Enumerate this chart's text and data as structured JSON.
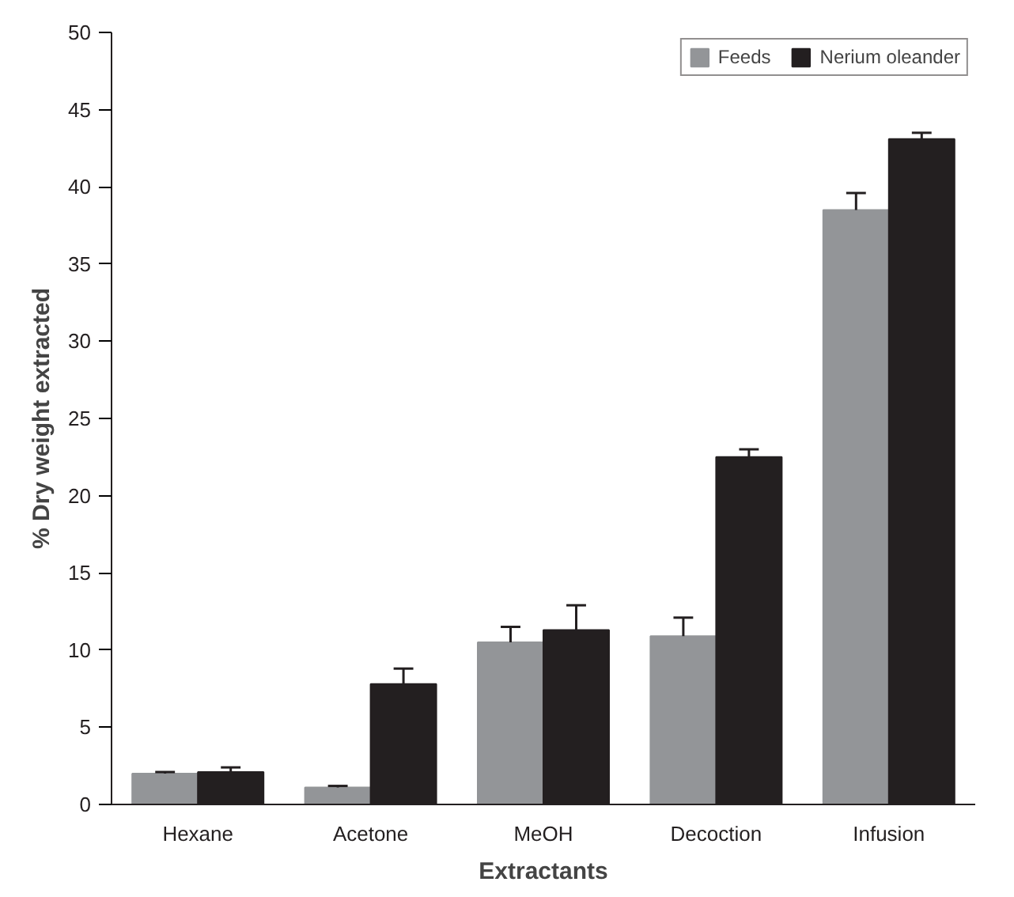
{
  "chart_data": {
    "type": "bar",
    "xlabel": "Extractants",
    "ylabel": "% Dry weight extracted",
    "categories": [
      "Hexane",
      "Acetone",
      "MeOH",
      "Decoction",
      "Infusion"
    ],
    "series": [
      {
        "name": "Feeds",
        "color": "#939598",
        "values": [
          2.0,
          1.1,
          10.5,
          10.9,
          38.5
        ],
        "errors": [
          [
            2.0,
            2.1
          ],
          [
            1.1,
            1.2
          ],
          [
            10.5,
            11.5
          ],
          [
            10.9,
            12.1
          ],
          [
            38.5,
            39.6
          ]
        ]
      },
      {
        "name": "Nerium oleander",
        "color": "#231f20",
        "values": [
          2.1,
          7.8,
          11.3,
          22.5,
          43.1
        ],
        "errors": [
          [
            2.1,
            2.4
          ],
          [
            7.8,
            8.8
          ],
          [
            11.3,
            12.9
          ],
          [
            22.5,
            23.0
          ],
          [
            43.1,
            43.5
          ]
        ]
      }
    ],
    "ylim": [
      0,
      50
    ],
    "yticks": [
      0,
      5,
      10,
      15,
      20,
      25,
      30,
      35,
      40,
      45,
      50
    ],
    "grid": false,
    "legend": "top right"
  }
}
